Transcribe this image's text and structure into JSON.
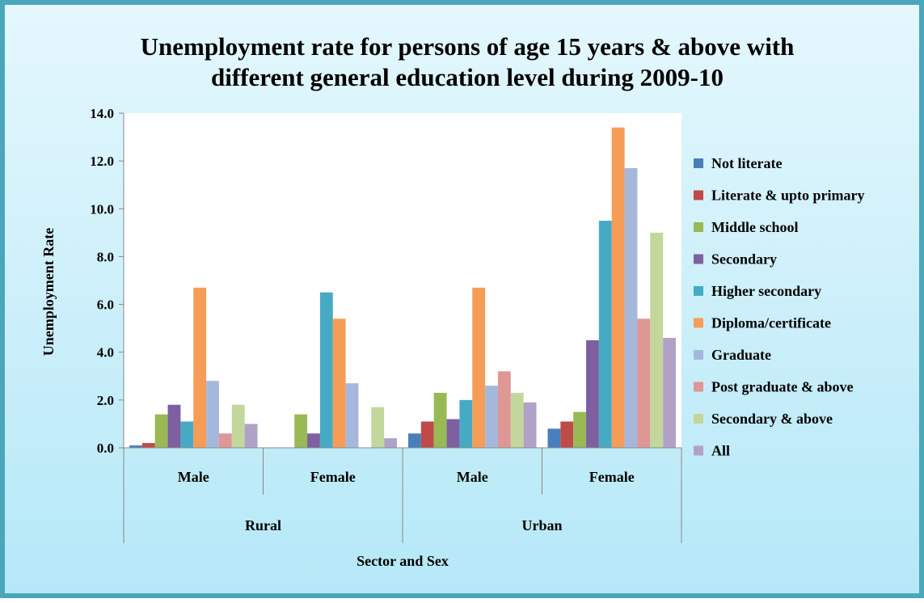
{
  "chart_data": {
    "type": "bar",
    "title_lines": [
      "Unemployment rate for persons of age 15 years & above with",
      "different general education level during 2009-10"
    ],
    "xlabel": "Sector and Sex",
    "ylabel": "Unemployment Rate",
    "ylim": [
      0,
      14
    ],
    "yticks": [
      "0.0",
      "2.0",
      "4.0",
      "6.0",
      "8.0",
      "10.0",
      "12.0",
      "14.0"
    ],
    "grid": false,
    "legend_position": "right",
    "categories": [
      "Male",
      "Female",
      "Male",
      "Female"
    ],
    "groups": [
      "Rural",
      "Urban"
    ],
    "series": [
      {
        "name": "Not literate",
        "color": "#4a7ebb",
        "values": [
          0.1,
          0,
          0.6,
          0.8
        ]
      },
      {
        "name": "Literate & upto primary",
        "color": "#be4b48",
        "values": [
          0.2,
          0,
          1.1,
          1.1
        ]
      },
      {
        "name": "Middle school",
        "color": "#98b954",
        "values": [
          1.4,
          1.4,
          2.3,
          1.5
        ]
      },
      {
        "name": "Secondary",
        "color": "#7d60a0",
        "values": [
          1.8,
          0.6,
          1.2,
          4.5
        ]
      },
      {
        "name": "Higher secondary",
        "color": "#46aac5",
        "values": [
          1.1,
          6.5,
          2.0,
          9.5
        ]
      },
      {
        "name": "Diploma/certificate",
        "color": "#f59d56",
        "values": [
          6.7,
          5.4,
          6.7,
          13.4
        ]
      },
      {
        "name": "Graduate",
        "color": "#a5b8dc",
        "values": [
          2.8,
          2.7,
          2.6,
          11.7
        ]
      },
      {
        "name": "Post graduate & above",
        "color": "#de9795",
        "values": [
          0.6,
          0,
          3.2,
          5.4
        ]
      },
      {
        "name": "Secondary & above",
        "color": "#c3d69b",
        "values": [
          1.8,
          1.7,
          2.3,
          9.0
        ]
      },
      {
        "name": "All",
        "color": "#b2a1c7",
        "values": [
          1.0,
          0.4,
          1.9,
          4.6
        ]
      }
    ]
  }
}
